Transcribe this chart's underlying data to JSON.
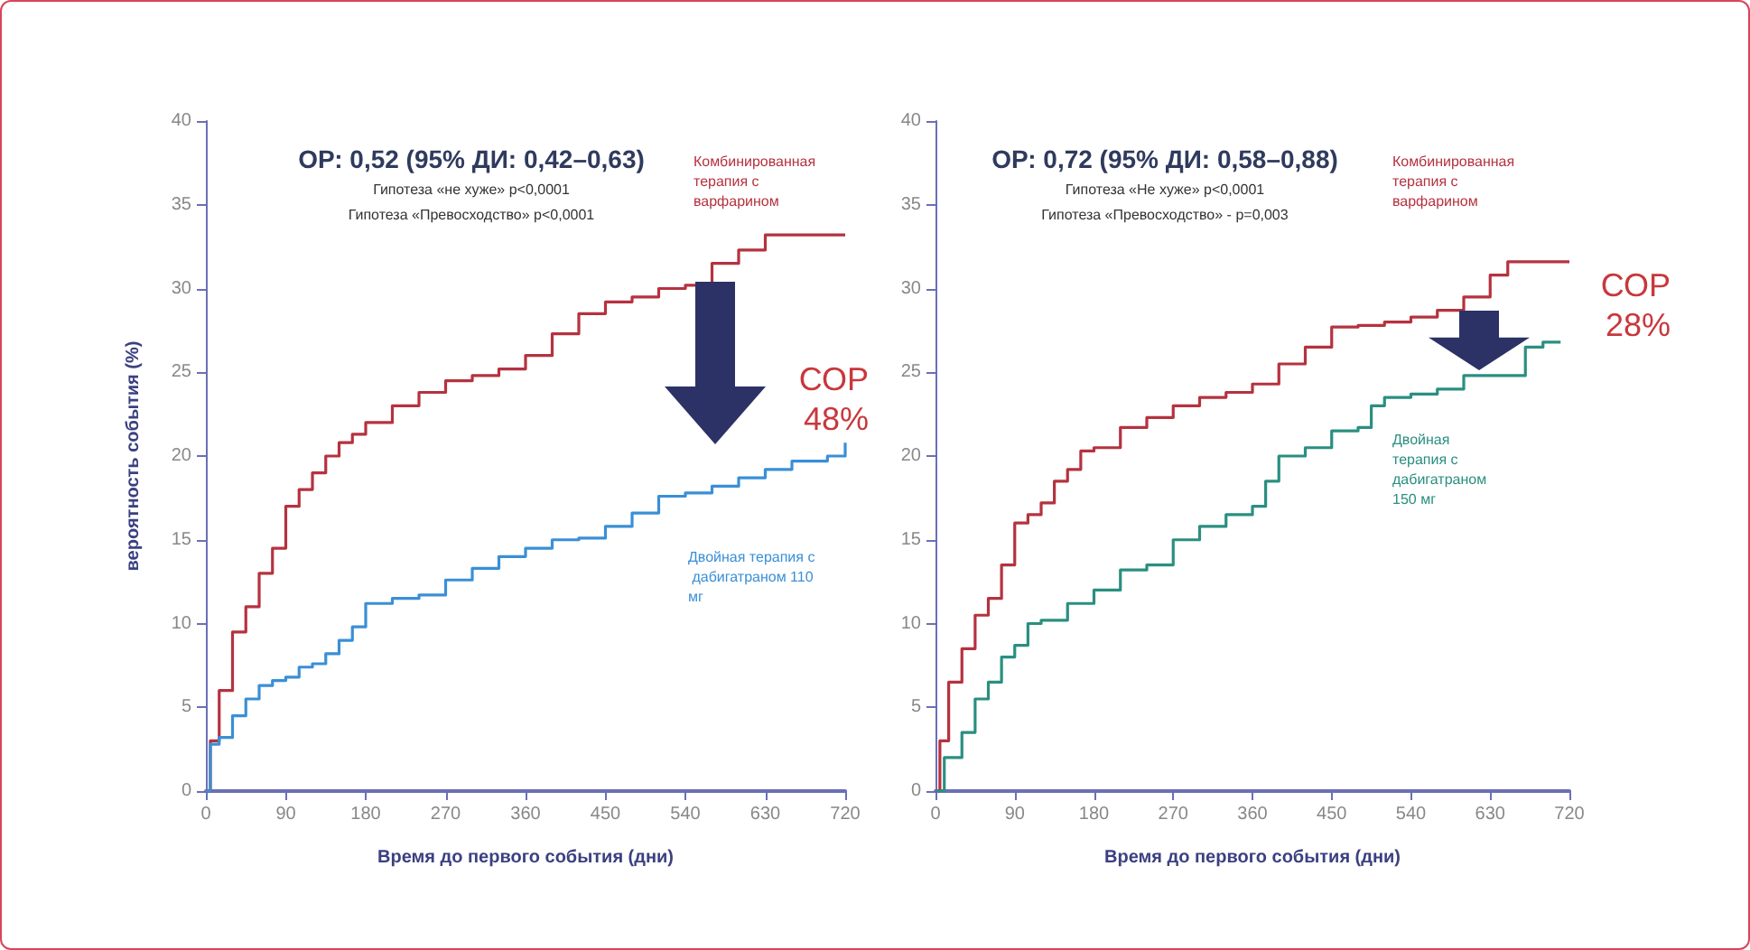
{
  "chart_data": [
    {
      "type": "step",
      "title": "ОР: 0,52 (95% ДИ: 0,42–0,63)",
      "subtitle": "Гипотеза «не хуже» p<0,0001\nГипотеза «Превосходство» p<0,0001",
      "xlabel": "Время до первого события (дни)",
      "ylabel": "вероятность события (%)",
      "xlim": [
        0,
        720
      ],
      "xticks": [
        0,
        90,
        180,
        270,
        360,
        450,
        540,
        630,
        720
      ],
      "ylim": [
        0,
        40
      ],
      "yticks": [
        0,
        5,
        10,
        15,
        20,
        25,
        30,
        35,
        40
      ],
      "grid": false,
      "legend": false,
      "annotations": [
        "СОР 48%"
      ],
      "series": [
        {
          "name": "Комбинированная терапия с варфарином",
          "color": "#b5323f",
          "x": [
            0,
            5,
            15,
            30,
            45,
            60,
            75,
            90,
            105,
            120,
            135,
            150,
            165,
            180,
            210,
            240,
            270,
            300,
            330,
            360,
            390,
            420,
            450,
            480,
            510,
            540,
            570,
            600,
            630,
            720
          ],
          "values": [
            0,
            3,
            6,
            9.5,
            11,
            13,
            14.5,
            17,
            18,
            19,
            20,
            20.8,
            21.3,
            22,
            23,
            23.8,
            24.5,
            24.8,
            25.2,
            26,
            27.3,
            28.5,
            29.2,
            29.5,
            30,
            30.2,
            31.5,
            32.3,
            33.2,
            33.2
          ]
        },
        {
          "name": "Двойная терапия с дабигатраном 110 мг",
          "color": "#3a8fd6",
          "x": [
            0,
            5,
            15,
            30,
            45,
            60,
            75,
            90,
            105,
            120,
            135,
            150,
            165,
            180,
            210,
            240,
            270,
            300,
            330,
            360,
            390,
            420,
            450,
            480,
            510,
            540,
            570,
            600,
            630,
            660,
            700,
            720
          ],
          "values": [
            0,
            2.8,
            3.2,
            4.5,
            5.5,
            6.3,
            6.6,
            6.8,
            7.4,
            7.6,
            8.2,
            9,
            9.8,
            11.2,
            11.5,
            11.7,
            12.6,
            13.3,
            14,
            14.5,
            15,
            15.1,
            15.8,
            16.6,
            17.6,
            17.8,
            18.2,
            18.7,
            19.2,
            19.7,
            20,
            20.8
          ]
        }
      ]
    },
    {
      "type": "step",
      "title": "ОР: 0,72 (95% ДИ: 0,58–0,88)",
      "subtitle": "Гипотеза «Не хуже» p<0,0001\nГипотеза «Превосходство» - p=0,003",
      "xlabel": "Время до первого события (дни)",
      "xlim": [
        0,
        720
      ],
      "xticks": [
        0,
        90,
        180,
        270,
        360,
        450,
        540,
        630,
        720
      ],
      "ylim": [
        0,
        40
      ],
      "yticks": [
        0,
        5,
        10,
        15,
        20,
        25,
        30,
        35,
        40
      ],
      "grid": false,
      "legend": false,
      "annotations": [
        "СОР 28%"
      ],
      "series": [
        {
          "name": "Комбинированная терапия с варфарином",
          "color": "#b5323f",
          "x": [
            0,
            5,
            15,
            30,
            45,
            60,
            75,
            90,
            105,
            120,
            135,
            150,
            165,
            180,
            210,
            240,
            270,
            300,
            330,
            360,
            390,
            420,
            450,
            480,
            510,
            540,
            570,
            600,
            630,
            650,
            720
          ],
          "values": [
            0,
            3,
            6.5,
            8.5,
            10.5,
            11.5,
            13.5,
            16,
            16.5,
            17.2,
            18.5,
            19.2,
            20.3,
            20.5,
            21.7,
            22.3,
            23,
            23.5,
            23.8,
            24.3,
            25.5,
            26.5,
            27.7,
            27.8,
            28,
            28.3,
            28.7,
            29.5,
            30.8,
            31.6,
            31.6
          ]
        },
        {
          "name": "Двойная терапия с дабигатраном 150 мг",
          "color": "#2a8f80",
          "x": [
            0,
            10,
            30,
            45,
            60,
            75,
            90,
            105,
            120,
            150,
            180,
            210,
            240,
            270,
            300,
            330,
            360,
            375,
            390,
            420,
            450,
            480,
            495,
            510,
            540,
            570,
            600,
            660,
            670,
            690,
            710
          ],
          "values": [
            0,
            2,
            3.5,
            5.5,
            6.5,
            8,
            8.7,
            10,
            10.2,
            11.2,
            12,
            13.2,
            13.5,
            15,
            15.8,
            16.5,
            17,
            18.5,
            20,
            20.5,
            21.5,
            21.7,
            23,
            23.5,
            23.7,
            24,
            24.8,
            24.8,
            26.5,
            26.8,
            26.8
          ]
        }
      ]
    }
  ]
}
